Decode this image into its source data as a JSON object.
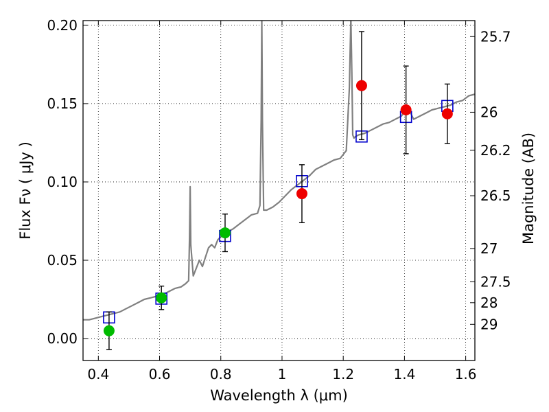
{
  "chart_data": {
    "type": "scatter",
    "xlabel": "Wavelength  λ (μm)",
    "ylabel": "Flux  Fν  ( μJy )",
    "y2label": "Magnitude (AB)",
    "xlim": [
      0.35,
      1.63
    ],
    "ylim": [
      -0.014,
      0.203
    ],
    "grid": true,
    "x_ticks": [
      0.4,
      0.6,
      0.8,
      1.0,
      1.2,
      1.4,
      1.6
    ],
    "x_tick_labels": [
      "0.4",
      "0.6",
      "0.8",
      "1",
      "1.2",
      "1.4",
      "1.6"
    ],
    "y_ticks": [
      0.0,
      0.05,
      0.1,
      0.15,
      0.2
    ],
    "y_tick_labels": [
      "0.00",
      "0.05",
      "0.10",
      "0.15",
      "0.20"
    ],
    "mag_ticks": [
      {
        "label": "25.7",
        "flux": 0.1928
      },
      {
        "label": "26",
        "flux": 0.1445
      },
      {
        "label": "26.2",
        "flux": 0.1202
      },
      {
        "label": "26.5",
        "flux": 0.0912
      },
      {
        "label": "27",
        "flux": 0.0575
      },
      {
        "label": "27.5",
        "flux": 0.0363
      },
      {
        "label": "28",
        "flux": 0.0229
      },
      {
        "label": "29",
        "flux": 0.0091
      }
    ],
    "series": [
      {
        "kind": "line",
        "color": "#808080",
        "x": [
          0.35,
          0.37,
          0.39,
          0.41,
          0.43,
          0.45,
          0.47,
          0.49,
          0.51,
          0.53,
          0.55,
          0.57,
          0.59,
          0.61,
          0.63,
          0.65,
          0.67,
          0.685,
          0.695,
          0.698,
          0.7,
          0.702,
          0.71,
          0.72,
          0.73,
          0.74,
          0.75,
          0.76,
          0.77,
          0.78,
          0.79,
          0.8,
          0.82,
          0.84,
          0.86,
          0.88,
          0.9,
          0.92,
          0.928,
          0.932,
          0.934,
          0.936,
          0.94,
          0.95,
          0.97,
          0.99,
          1.01,
          1.03,
          1.05,
          1.07,
          1.09,
          1.11,
          1.13,
          1.15,
          1.17,
          1.19,
          1.21,
          1.22,
          1.225,
          1.228,
          1.231,
          1.235,
          1.24,
          1.25,
          1.27,
          1.29,
          1.31,
          1.33,
          1.35,
          1.37,
          1.39,
          1.41,
          1.43,
          1.45,
          1.47,
          1.49,
          1.51,
          1.53,
          1.55,
          1.57,
          1.59,
          1.61,
          1.63
        ],
        "y": [
          0.012,
          0.012,
          0.013,
          0.014,
          0.015,
          0.016,
          0.017,
          0.019,
          0.021,
          0.023,
          0.025,
          0.026,
          0.027,
          0.028,
          0.03,
          0.032,
          0.033,
          0.035,
          0.037,
          0.065,
          0.097,
          0.06,
          0.04,
          0.045,
          0.05,
          0.046,
          0.052,
          0.058,
          0.06,
          0.058,
          0.063,
          0.065,
          0.068,
          0.07,
          0.073,
          0.076,
          0.079,
          0.08,
          0.085,
          0.14,
          0.205,
          0.14,
          0.082,
          0.082,
          0.084,
          0.087,
          0.091,
          0.095,
          0.098,
          0.101,
          0.104,
          0.108,
          0.11,
          0.112,
          0.114,
          0.115,
          0.12,
          0.16,
          0.205,
          0.17,
          0.13,
          0.128,
          0.129,
          0.13,
          0.131,
          0.133,
          0.135,
          0.137,
          0.138,
          0.14,
          0.142,
          0.148,
          0.14,
          0.142,
          0.144,
          0.146,
          0.147,
          0.148,
          0.149,
          0.151,
          0.152,
          0.155,
          0.156
        ]
      },
      {
        "kind": "open-square",
        "color": "#0000cc",
        "points": [
          {
            "x": 0.435,
            "y": 0.0135
          },
          {
            "x": 0.606,
            "y": 0.0255
          },
          {
            "x": 0.814,
            "y": 0.0655
          },
          {
            "x": 1.065,
            "y": 0.1005
          },
          {
            "x": 1.26,
            "y": 0.129
          },
          {
            "x": 1.405,
            "y": 0.1415
          },
          {
            "x": 1.54,
            "y": 0.1485
          }
        ]
      },
      {
        "kind": "dot",
        "color": "#00bb00",
        "points": [
          {
            "x": 0.435,
            "y": 0.005,
            "err": 0.012
          },
          {
            "x": 0.606,
            "y": 0.026,
            "err": 0.0075
          },
          {
            "x": 0.814,
            "y": 0.0675,
            "err": 0.012
          }
        ]
      },
      {
        "kind": "dot",
        "color": "#ee0000",
        "points": [
          {
            "x": 1.065,
            "y": 0.0925,
            "err": 0.0185
          },
          {
            "x": 1.26,
            "y": 0.1615,
            "err": 0.0345
          },
          {
            "x": 1.405,
            "y": 0.146,
            "err": 0.028
          },
          {
            "x": 1.54,
            "y": 0.1435,
            "err": 0.019
          }
        ]
      }
    ]
  }
}
